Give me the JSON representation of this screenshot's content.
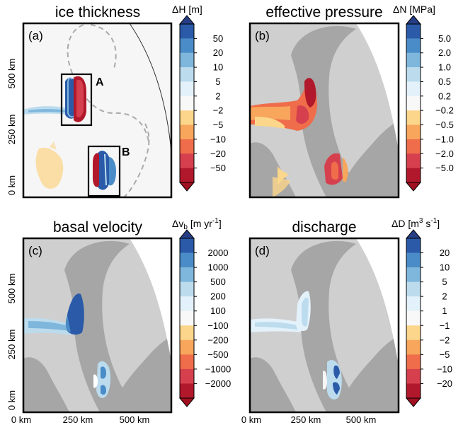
{
  "chart_data": {
    "type": "heatmap",
    "palette": [
      "#b2182b",
      "#d6404e",
      "#ef6d4a",
      "#f7a65c",
      "#fbd68b",
      "#f8f8f8",
      "#e3f1fa",
      "#bcdcee",
      "#7fb6db",
      "#4a8cc7",
      "#2a5aa8"
    ],
    "background": {
      "land": "#f6f6f6",
      "light_gray": "#cfcfcf",
      "dark_gray": "#a6a6a6"
    },
    "x_tick_labels": [
      "0 km",
      "250 km",
      "500 km"
    ],
    "y_tick_labels": [
      "0 km",
      "250 km",
      "500 km"
    ],
    "panels": [
      {
        "id": "a",
        "title": "ice thickness",
        "panel_label": "(a)",
        "colorbar_symbol": "ΔH",
        "colorbar_units": "[m]",
        "colorbar_ticks": [
          "50",
          "20",
          "10",
          "5",
          "2",
          "−2",
          "−5",
          "−10",
          "−20",
          "−50"
        ],
        "boxes": [
          "A",
          "B"
        ]
      },
      {
        "id": "b",
        "title": "effective pressure",
        "panel_label": "(b)",
        "colorbar_symbol": "ΔN",
        "colorbar_units": "[MPa]",
        "colorbar_ticks": [
          "5.0",
          "2.0",
          "1.0",
          "0.5",
          "0.2",
          "−0.2",
          "−0.5",
          "−1.0",
          "−2.0",
          "−5.0"
        ]
      },
      {
        "id": "c",
        "title": "basal velocity",
        "panel_label": "(c)",
        "colorbar_symbol": "Δv",
        "colorbar_sub": "b",
        "colorbar_units": "[m yr",
        "colorbar_sup": "-1",
        "colorbar_units_end": "]",
        "colorbar_ticks": [
          "2000",
          "1000",
          "500",
          "200",
          "100",
          "−100",
          "−200",
          "−500",
          "−1000",
          "−2000"
        ]
      },
      {
        "id": "d",
        "title": "discharge",
        "panel_label": "(d)",
        "colorbar_symbol": "ΔD",
        "colorbar_units": "[m",
        "colorbar_sup": "3",
        "colorbar_units_mid": " s",
        "colorbar_sup2": "-1",
        "colorbar_units_end": "]",
        "colorbar_ticks": [
          "20",
          "10",
          "5",
          "2",
          "1",
          "−1",
          "−2",
          "−5",
          "−10",
          "−20"
        ]
      }
    ]
  }
}
